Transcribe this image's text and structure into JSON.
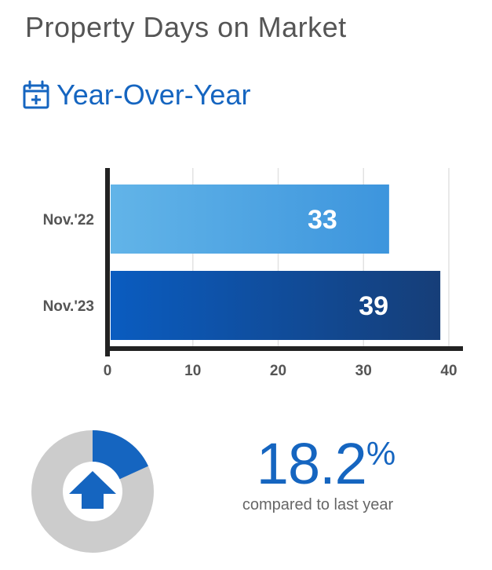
{
  "header": {
    "title": "Property Days on Market",
    "section_title": "Year-Over-Year"
  },
  "colors": {
    "accent": "#1565c0",
    "bar_light_start": "#62b4e8",
    "bar_light_end": "#3d95dd",
    "bar_dark_start": "#0a5cc0",
    "bar_dark_end": "#163e78",
    "donut_gray": "#cccccc",
    "axis": "#222222"
  },
  "icons": {
    "section": "calendar-plus-icon",
    "stat": "arrow-up-icon"
  },
  "chart_data": {
    "type": "bar",
    "orientation": "horizontal",
    "categories": [
      "Nov.'22",
      "Nov.'23"
    ],
    "values": [
      33,
      39
    ],
    "value_labels": [
      "33",
      "39"
    ],
    "xlim": [
      0,
      40
    ],
    "xticks": [
      0,
      10,
      20,
      30,
      40
    ],
    "tick_labels": [
      "0",
      "10",
      "20",
      "30",
      "40"
    ],
    "grid": true
  },
  "stat": {
    "change_value": "18.2",
    "change_unit": "%",
    "change_fraction": 0.182,
    "caption": "compared to last year"
  }
}
